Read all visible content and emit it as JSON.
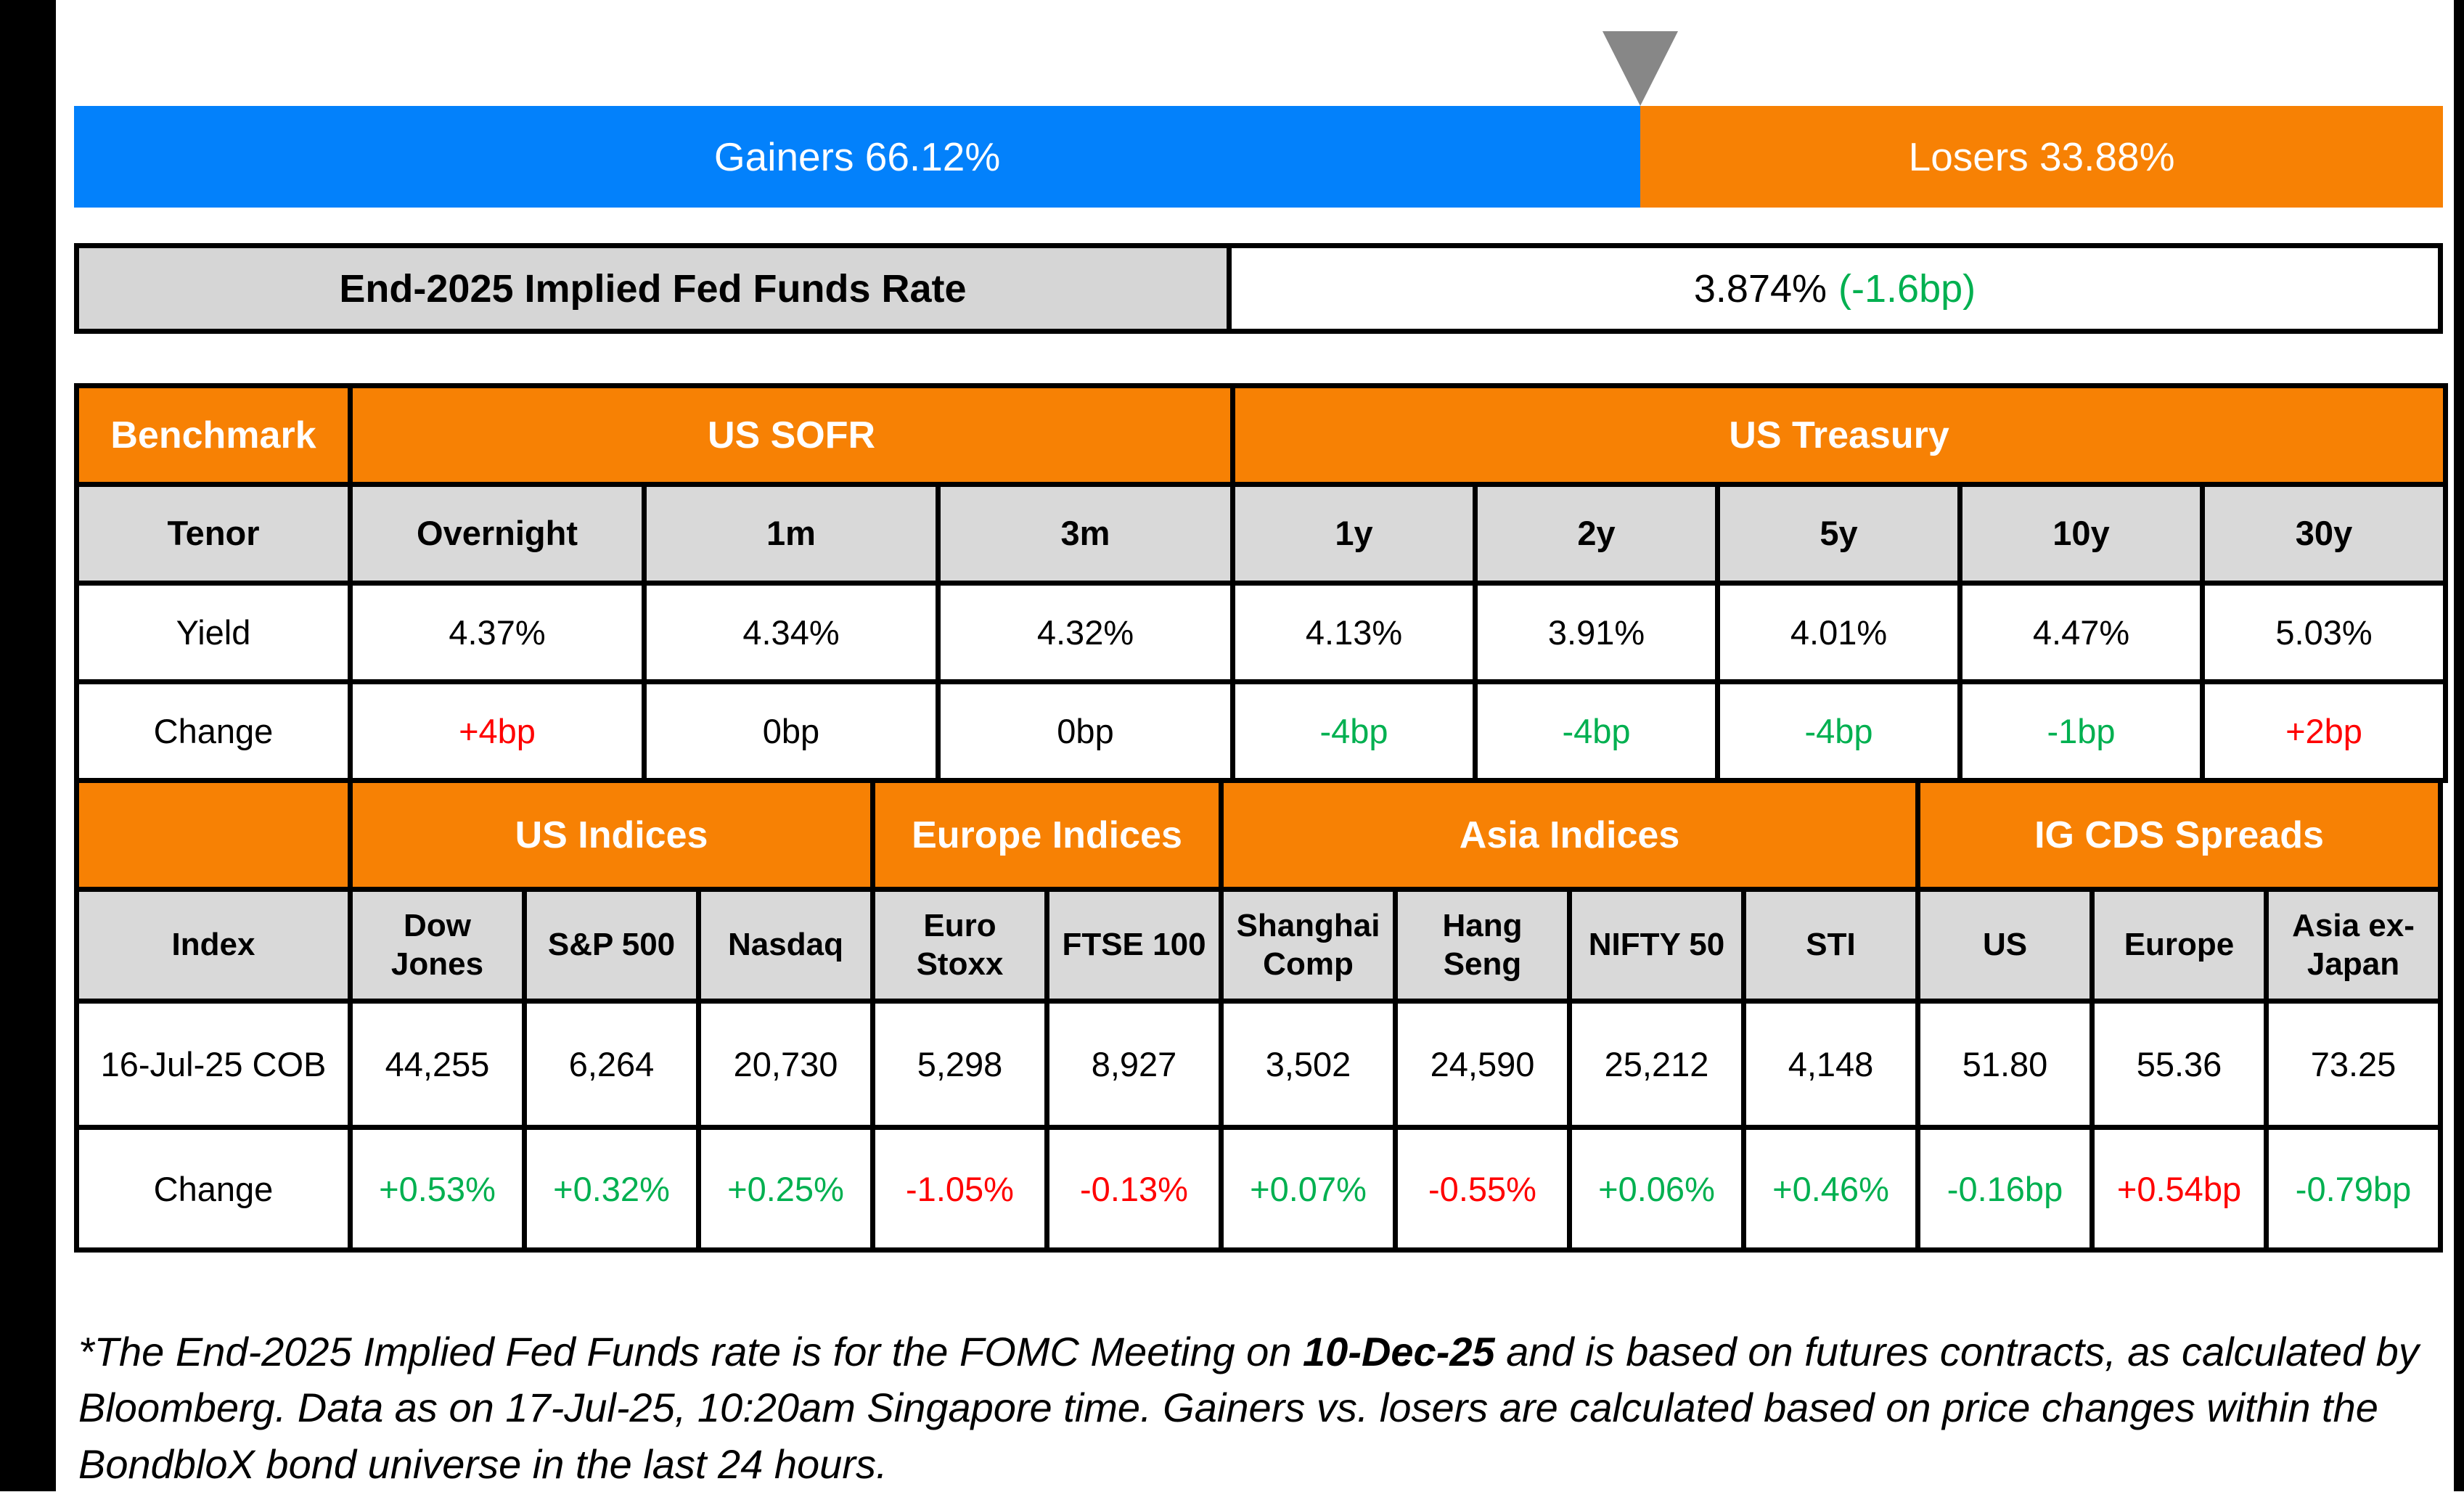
{
  "colors": {
    "blue": "#0381fb",
    "orange": "#f78104",
    "gray_fill": "#d9d9d9",
    "label_gray": "#d6d6d6",
    "triangle_gray": "#878787",
    "green": "#00b050",
    "red": "#ff0000",
    "border_black": "#000000"
  },
  "gainers_losers": {
    "gainers_label": "Gainers 66.12%",
    "losers_label": "Losers 33.88%",
    "gainers_pct": 66.12,
    "losers_pct": 33.88
  },
  "fed_funds": {
    "label": "End-2025 Implied Fed Funds Rate",
    "rate": "3.874%",
    "change": "(-1.6bp)"
  },
  "benchmark_table": {
    "header": {
      "benchmark": "Benchmark",
      "us_sofr": "US SOFR",
      "us_treasury": "US Treasury"
    },
    "tenor_row": {
      "label": "Tenor",
      "values": [
        "Overnight",
        "1m",
        "3m",
        "1y",
        "2y",
        "5y",
        "10y",
        "30y"
      ]
    },
    "yield_row": {
      "label": "Yield",
      "values": [
        "4.37%",
        "4.34%",
        "4.32%",
        "4.13%",
        "3.91%",
        "4.01%",
        "4.47%",
        "5.03%"
      ]
    },
    "change_row": {
      "label": "Change",
      "values": [
        "+4bp",
        "0bp",
        "0bp",
        "-4bp",
        "-4bp",
        "-4bp",
        "-1bp",
        "+2bp"
      ]
    }
  },
  "indices_table": {
    "header": {
      "us_indices": "US Indices",
      "europe_indices": "Europe Indices",
      "asia_indices": "Asia Indices",
      "ig_cds": "IG CDS Spreads"
    },
    "index_row": {
      "label": "Index",
      "values": [
        "Dow Jones",
        "S&P 500",
        "Nasdaq",
        "Euro Stoxx",
        "FTSE 100",
        "Shanghai Comp",
        "Hang Seng",
        "NIFTY 50",
        "STI",
        "US",
        "Europe",
        "Asia ex-Japan"
      ]
    },
    "cob_row": {
      "label": "16-Jul-25 COB",
      "values": [
        "44,255",
        "6,264",
        "20,730",
        "5,298",
        "8,927",
        "3,502",
        "24,590",
        "25,212",
        "4,148",
        "51.80",
        "55.36",
        "73.25"
      ]
    },
    "change_row": {
      "label": "Change",
      "values": [
        "+0.53%",
        "+0.32%",
        "+0.25%",
        "-1.05%",
        "-0.13%",
        "+0.07%",
        "-0.55%",
        "+0.06%",
        "+0.46%",
        "-0.16bp",
        "+0.54bp",
        "-0.79bp"
      ]
    }
  },
  "footnote": {
    "line1_pre": "*The End-2025 Implied Fed Funds rate is for the FOMC Meeting on ",
    "line1_bold": "10-Dec-25",
    "line1_post": " and is based on futures contracts, as calculated by",
    "line2": "Bloomberg. Data as on 17-Jul-25, 10:20am Singapore time. Gainers vs. losers are calculated based on price changes within the",
    "line3": "BondbloX bond universe in the last 24 hours."
  },
  "chart_data": [
    {
      "type": "bar",
      "title": "Gainers vs Losers",
      "orientation": "horizontal-stacked",
      "categories": [
        "BondbloX bond universe last 24 hours"
      ],
      "series": [
        {
          "name": "Gainers",
          "values": [
            66.12
          ],
          "color": "#0381fb"
        },
        {
          "name": "Losers",
          "values": [
            33.88
          ],
          "color": "#f78104"
        }
      ],
      "unit": "%",
      "annotations": [
        "gray triangle marker at 66.12% boundary"
      ],
      "xlim": [
        0,
        100
      ]
    },
    {
      "type": "table",
      "title": "End-2025 Implied Fed Funds Rate",
      "rows": [
        [
          "End-2025 Implied Fed Funds Rate",
          "3.874% (-1.6bp)"
        ]
      ]
    },
    {
      "type": "table",
      "title": "Benchmark yields",
      "column_groups": {
        "US SOFR": [
          "Overnight",
          "1m",
          "3m"
        ],
        "US Treasury": [
          "1y",
          "2y",
          "5y",
          "10y",
          "30y"
        ]
      },
      "columns": [
        "Tenor",
        "Overnight",
        "1m",
        "3m",
        "1y",
        "2y",
        "5y",
        "10y",
        "30y"
      ],
      "rows": [
        [
          "Yield",
          "4.37%",
          "4.34%",
          "4.32%",
          "4.13%",
          "3.91%",
          "4.01%",
          "4.47%",
          "5.03%"
        ],
        [
          "Change",
          "+4bp",
          "0bp",
          "0bp",
          "-4bp",
          "-4bp",
          "-4bp",
          "-1bp",
          "+2bp"
        ]
      ]
    },
    {
      "type": "table",
      "title": "Indices and IG CDS spreads",
      "column_groups": {
        "US Indices": [
          "Dow Jones",
          "S&P 500",
          "Nasdaq"
        ],
        "Europe Indices": [
          "Euro Stoxx",
          "FTSE 100"
        ],
        "Asia Indices": [
          "Shanghai Comp",
          "Hang Seng",
          "NIFTY 50",
          "STI"
        ],
        "IG CDS Spreads": [
          "US",
          "Europe",
          "Asia ex-Japan"
        ]
      },
      "columns": [
        "Index",
        "Dow Jones",
        "S&P 500",
        "Nasdaq",
        "Euro Stoxx",
        "FTSE 100",
        "Shanghai Comp",
        "Hang Seng",
        "NIFTY 50",
        "STI",
        "US",
        "Europe",
        "Asia ex-Japan"
      ],
      "rows": [
        [
          "16-Jul-25 COB",
          "44,255",
          "6,264",
          "20,730",
          "5,298",
          "8,927",
          "3,502",
          "24,590",
          "25,212",
          "4,148",
          "51.80",
          "55.36",
          "73.25"
        ],
        [
          "Change",
          "+0.53%",
          "+0.32%",
          "+0.25%",
          "-1.05%",
          "-0.13%",
          "+0.07%",
          "-0.55%",
          "+0.06%",
          "+0.46%",
          "-0.16bp",
          "+0.54bp",
          "-0.79bp"
        ]
      ]
    }
  ]
}
